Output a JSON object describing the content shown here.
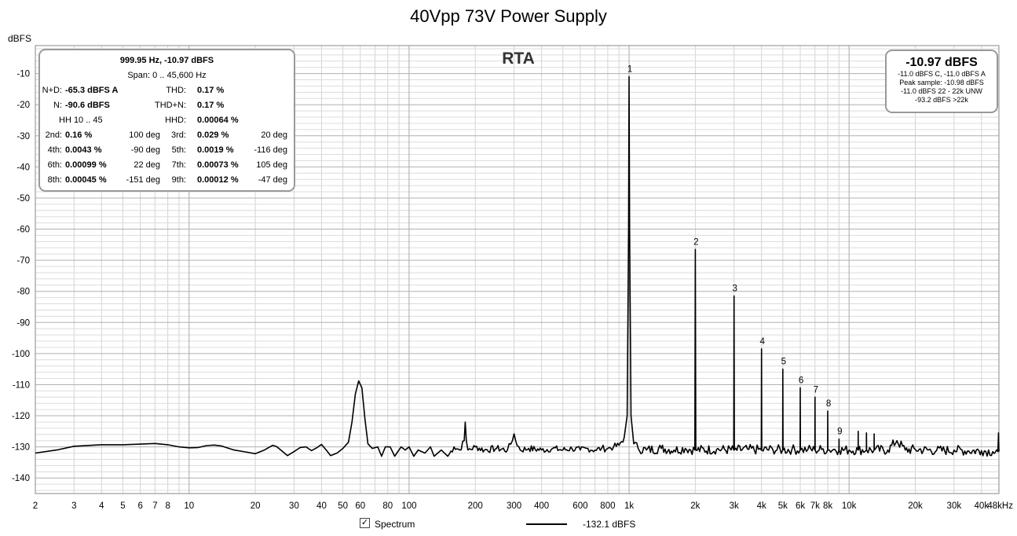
{
  "chart_data": {
    "type": "line",
    "title": "40Vpp 73V Power Supply",
    "ylabel": "dBFS",
    "xlabel": "",
    "x_scale": "log",
    "xlim": [
      2,
      48000
    ],
    "ylim": [
      -145,
      -1
    ],
    "grid": true,
    "x_ticks": [
      {
        "v": 2,
        "l": "2"
      },
      {
        "v": 3,
        "l": "3"
      },
      {
        "v": 4,
        "l": "4"
      },
      {
        "v": 5,
        "l": "5"
      },
      {
        "v": 6,
        "l": "6"
      },
      {
        "v": 7,
        "l": "7"
      },
      {
        "v": 8,
        "l": "8"
      },
      {
        "v": 10,
        "l": "10"
      },
      {
        "v": 20,
        "l": "20"
      },
      {
        "v": 30,
        "l": "30"
      },
      {
        "v": 40,
        "l": "40"
      },
      {
        "v": 50,
        "l": "50"
      },
      {
        "v": 60,
        "l": "60"
      },
      {
        "v": 80,
        "l": "80"
      },
      {
        "v": 100,
        "l": "100"
      },
      {
        "v": 200,
        "l": "200"
      },
      {
        "v": 300,
        "l": "300"
      },
      {
        "v": 400,
        "l": "400"
      },
      {
        "v": 600,
        "l": "600"
      },
      {
        "v": 800,
        "l": "800"
      },
      {
        "v": 1000,
        "l": "1k"
      },
      {
        "v": 2000,
        "l": "2k"
      },
      {
        "v": 3000,
        "l": "3k"
      },
      {
        "v": 4000,
        "l": "4k"
      },
      {
        "v": 5000,
        "l": "5k"
      },
      {
        "v": 6000,
        "l": "6k"
      },
      {
        "v": 7000,
        "l": "7k"
      },
      {
        "v": 8000,
        "l": "8k"
      },
      {
        "v": 10000,
        "l": "10k"
      },
      {
        "v": 20000,
        "l": "20k"
      },
      {
        "v": 30000,
        "l": "30k"
      },
      {
        "v": 40000,
        "l": "40k"
      },
      {
        "v": 48000,
        "l": "48kHz"
      }
    ],
    "y_ticks": [
      {
        "v": -10,
        "l": "-10"
      },
      {
        "v": -20,
        "l": "-20"
      },
      {
        "v": -30,
        "l": "-30"
      },
      {
        "v": -40,
        "l": "-40"
      },
      {
        "v": -50,
        "l": "-50"
      },
      {
        "v": -60,
        "l": "-60"
      },
      {
        "v": -70,
        "l": "-70"
      },
      {
        "v": -80,
        "l": "-80"
      },
      {
        "v": -90,
        "l": "-90"
      },
      {
        "v": -100,
        "l": "-100"
      },
      {
        "v": -110,
        "l": "-110"
      },
      {
        "v": -120,
        "l": "-120"
      },
      {
        "v": -130,
        "l": "-130"
      },
      {
        "v": -140,
        "l": "-140"
      }
    ],
    "series": [
      {
        "name": "Spectrum",
        "color": "#000000",
        "points": [
          [
            2,
            -132
          ],
          [
            2.5,
            -131
          ],
          [
            3,
            -129.8
          ],
          [
            4,
            -129.3
          ],
          [
            5,
            -129.3
          ],
          [
            6,
            -129.1
          ],
          [
            7,
            -128.9
          ],
          [
            8,
            -129.3
          ],
          [
            9,
            -130
          ],
          [
            10,
            -130.3
          ],
          [
            11,
            -130.2
          ],
          [
            12,
            -129.6
          ],
          [
            13,
            -129.4
          ],
          [
            14,
            -129.7
          ],
          [
            16,
            -131
          ],
          [
            18,
            -131.6
          ],
          [
            20,
            -132.2
          ],
          [
            22,
            -131
          ],
          [
            24,
            -129.5
          ],
          [
            25,
            -129.9
          ],
          [
            28,
            -132.8
          ],
          [
            30,
            -131.5
          ],
          [
            32,
            -130.2
          ],
          [
            34,
            -130
          ],
          [
            36,
            -131.2
          ],
          [
            38,
            -130.3
          ],
          [
            40,
            -129.2
          ],
          [
            42,
            -131
          ],
          [
            44,
            -132.8
          ],
          [
            47,
            -132
          ],
          [
            50,
            -130.5
          ],
          [
            53,
            -128.5
          ],
          [
            55,
            -122
          ],
          [
            57,
            -113
          ],
          [
            59,
            -108.8
          ],
          [
            61,
            -111
          ],
          [
            63,
            -121
          ],
          [
            65,
            -129
          ],
          [
            68,
            -130.5
          ],
          [
            72,
            -130
          ],
          [
            75,
            -133
          ],
          [
            78,
            -130
          ],
          [
            82,
            -130
          ],
          [
            86,
            -133
          ],
          [
            92,
            -130
          ],
          [
            96,
            -131
          ],
          [
            100,
            -130
          ],
          [
            105,
            -133
          ],
          [
            110,
            -131
          ],
          [
            118,
            -132
          ],
          [
            125,
            -130
          ],
          [
            130,
            -133
          ],
          [
            140,
            -131
          ],
          [
            150,
            -133
          ],
          [
            160,
            -130
          ],
          [
            170,
            -131
          ],
          [
            178,
            -128
          ],
          [
            180,
            -122
          ],
          [
            182,
            -128
          ],
          [
            185,
            -131
          ],
          [
            200,
            -130
          ],
          [
            220,
            -131
          ],
          [
            250,
            -130.5
          ],
          [
            280,
            -131
          ],
          [
            295,
            -128
          ],
          [
            300,
            -125.8
          ],
          [
            305,
            -128
          ],
          [
            320,
            -131
          ],
          [
            350,
            -130.5
          ],
          [
            400,
            -131
          ],
          [
            450,
            -130.5
          ],
          [
            500,
            -131
          ],
          [
            550,
            -130.5
          ],
          [
            600,
            -131
          ],
          [
            650,
            -130.5
          ],
          [
            700,
            -131
          ],
          [
            750,
            -130.5
          ],
          [
            800,
            -130.5
          ],
          [
            850,
            -130
          ],
          [
            900,
            -129.5
          ],
          [
            950,
            -127
          ],
          [
            980,
            -120
          ],
          [
            995,
            -60
          ],
          [
            999.95,
            -10.97
          ],
          [
            1005,
            -60
          ],
          [
            1020,
            -120
          ],
          [
            1050,
            -129
          ],
          [
            1100,
            -130.5
          ],
          [
            1200,
            -131
          ],
          [
            1400,
            -130.5
          ],
          [
            1600,
            -131
          ],
          [
            1800,
            -130.5
          ],
          [
            1990,
            -131
          ],
          [
            2000,
            -66.5
          ],
          [
            2010,
            -131
          ],
          [
            2500,
            -130.8
          ],
          [
            2990,
            -131
          ],
          [
            3000,
            -81.5
          ],
          [
            3010,
            -131
          ],
          [
            3500,
            -130.8
          ],
          [
            3990,
            -131
          ],
          [
            4000,
            -98.5
          ],
          [
            4010,
            -131
          ],
          [
            4500,
            -130.8
          ],
          [
            4990,
            -131
          ],
          [
            5000,
            -105
          ],
          [
            5010,
            -131
          ],
          [
            5500,
            -130.8
          ],
          [
            5990,
            -131
          ],
          [
            6000,
            -111
          ],
          [
            6010,
            -131
          ],
          [
            6500,
            -130.8
          ],
          [
            6990,
            -131
          ],
          [
            7000,
            -114
          ],
          [
            7010,
            -131
          ],
          [
            7500,
            -130.8
          ],
          [
            7990,
            -131
          ],
          [
            8000,
            -118.5
          ],
          [
            8010,
            -131
          ],
          [
            8500,
            -130.8
          ],
          [
            8990,
            -131
          ],
          [
            9000,
            -127.5
          ],
          [
            9010,
            -131
          ],
          [
            10000,
            -131
          ],
          [
            10990,
            -131
          ],
          [
            11000,
            -125
          ],
          [
            11010,
            -131
          ],
          [
            11990,
            -131
          ],
          [
            12000,
            -125.5
          ],
          [
            12010,
            -131
          ],
          [
            12990,
            -131
          ],
          [
            13000,
            -125.8
          ],
          [
            13010,
            -131
          ],
          [
            15000,
            -131
          ],
          [
            16500,
            -128
          ],
          [
            18000,
            -131
          ],
          [
            20000,
            -130.8
          ],
          [
            25000,
            -131.2
          ],
          [
            30000,
            -131
          ],
          [
            35000,
            -131.3
          ],
          [
            40000,
            -131.2
          ],
          [
            45000,
            -131.5
          ],
          [
            47500,
            -131.5
          ],
          [
            47800,
            -125.5
          ],
          [
            48000,
            -131.5
          ]
        ]
      }
    ],
    "harmonic_labels": [
      {
        "label": "1",
        "f": 1000,
        "level": -10.97
      },
      {
        "label": "2",
        "f": 2000,
        "level": -66.5
      },
      {
        "label": "3",
        "f": 3000,
        "level": -81.5
      },
      {
        "label": "4",
        "f": 4000,
        "level": -98.5
      },
      {
        "label": "5",
        "f": 5000,
        "level": -105
      },
      {
        "label": "6",
        "f": 6000,
        "level": -111
      },
      {
        "label": "7",
        "f": 7000,
        "level": -114
      },
      {
        "label": "8",
        "f": 8000,
        "level": -118.5
      },
      {
        "label": "9",
        "f": 9000,
        "level": -127.5
      }
    ]
  },
  "rta_label": "RTA",
  "stats": {
    "header": "999.95 Hz, -10.97 dBFS",
    "span": "Span: 0 .. 45,600 Hz",
    "nd_label": "N+D:",
    "nd_value": "-65.3 dBFS A",
    "thd_label": "THD:",
    "thd_value": "0.17 %",
    "n_label": "N:",
    "n_value": "-90.6 dBFS",
    "thdn_label": "THD+N:",
    "thdn_value": "0.17 %",
    "hh_label": "HH 10 .. 45",
    "hhd_label": "HHD:",
    "hhd_value": "0.00064 %",
    "harmonics": [
      {
        "l1": "2nd:",
        "v1": "0.16 %",
        "p1": "100 deg",
        "l2": "3rd:",
        "v2": "0.029 %",
        "p2": "20 deg"
      },
      {
        "l1": "4th:",
        "v1": "0.0043 %",
        "p1": "-90 deg",
        "l2": "5th:",
        "v2": "0.0019 %",
        "p2": "-116 deg"
      },
      {
        "l1": "6th:",
        "v1": "0.00099 %",
        "p1": "22 deg",
        "l2": "7th:",
        "v2": "0.00073 %",
        "p2": "105 deg"
      },
      {
        "l1": "8th:",
        "v1": "0.00045 %",
        "p1": "-151 deg",
        "l2": "9th:",
        "v2": "0.00012 %",
        "p2": "-47 deg"
      }
    ]
  },
  "peak": {
    "value": "-10.97 dBFS",
    "lines": [
      "-11.0 dBFS C, -11.0 dBFS A",
      "Peak sample: -10.98 dBFS",
      "-11.0 dBFS 22 - 22k UNW",
      "-93.2 dBFS >22k"
    ]
  },
  "legend": {
    "checkbox_mark": "✓",
    "label": "Spectrum",
    "value": "-132.1 dBFS"
  }
}
